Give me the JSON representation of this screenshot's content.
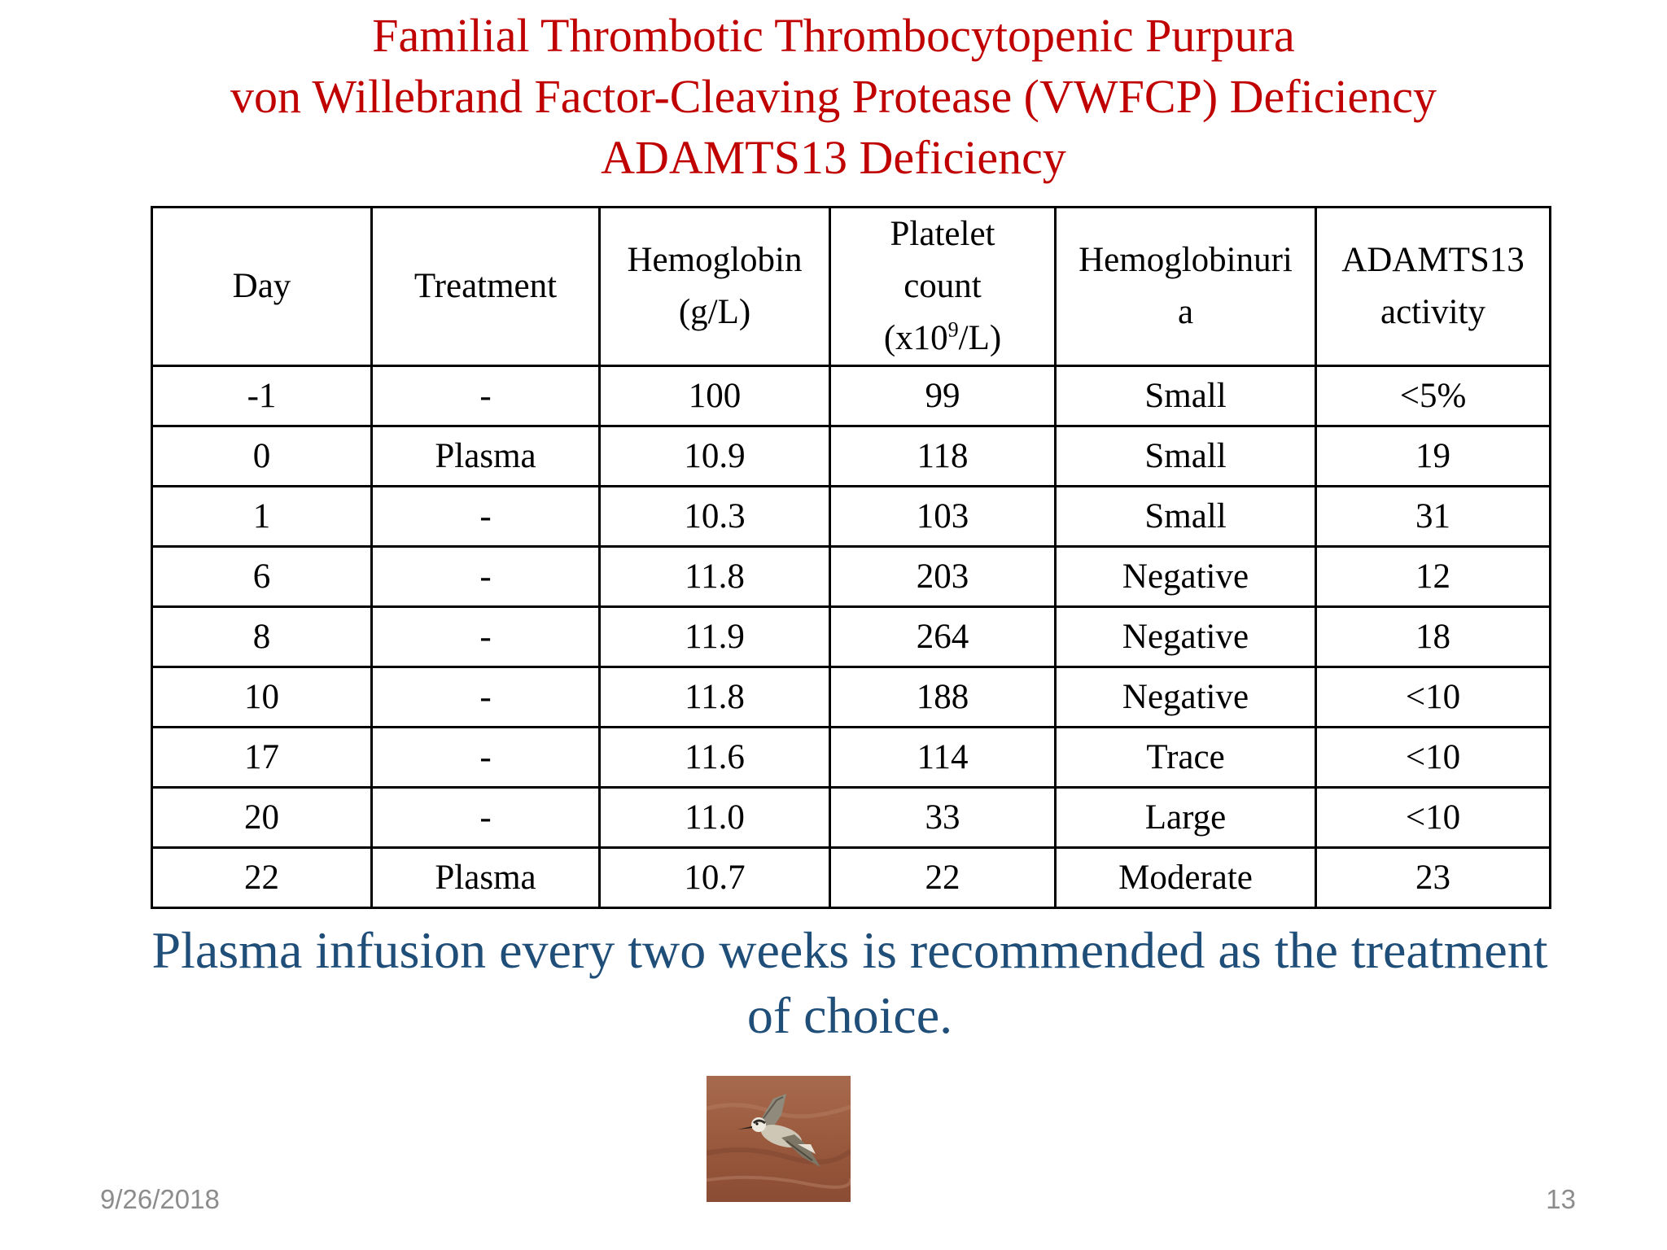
{
  "title": {
    "line1": "Familial Thrombotic Thrombocytopenic Purpura",
    "line2": "von Willebrand Factor-Cleaving Protease (VWFCP) Deficiency",
    "line3": "ADAMTS13 Deficiency",
    "color": "#c00000"
  },
  "table": {
    "headers": {
      "day": "Day",
      "treatment": "Treatment",
      "hemoglobin_line1": "Hemoglobin",
      "hemoglobin_line2": "(g/L)",
      "platelet_line1": "Platelet",
      "platelet_line2": "count",
      "platelet_line3_prefix": "(x10",
      "platelet_line3_sup": "9",
      "platelet_line3_suffix": "/L)",
      "hemoglobinuria_line1": "Hemoglobinuri",
      "hemoglobinuria_line2": "a",
      "adamts13_line1": "ADAMTS13",
      "adamts13_line2": "activity"
    },
    "rows": [
      {
        "day": "-1",
        "treatment": "-",
        "hemoglobin": "100",
        "platelet": "99",
        "hemoglobinuria": "Small",
        "adamts13": "<5%"
      },
      {
        "day": "0",
        "treatment": "Plasma",
        "hemoglobin": "10.9",
        "platelet": "118",
        "hemoglobinuria": "Small",
        "adamts13": "19"
      },
      {
        "day": "1",
        "treatment": "-",
        "hemoglobin": "10.3",
        "platelet": "103",
        "hemoglobinuria": "Small",
        "adamts13": "31"
      },
      {
        "day": "6",
        "treatment": "-",
        "hemoglobin": "11.8",
        "platelet": "203",
        "hemoglobinuria": "Negative",
        "adamts13": "12"
      },
      {
        "day": "8",
        "treatment": "-",
        "hemoglobin": "11.9",
        "platelet": "264",
        "hemoglobinuria": "Negative",
        "adamts13": "18"
      },
      {
        "day": "10",
        "treatment": "-",
        "hemoglobin": "11.8",
        "platelet": "188",
        "hemoglobinuria": "Negative",
        "adamts13": "<10"
      },
      {
        "day": "17",
        "treatment": "-",
        "hemoglobin": "11.6",
        "platelet": "114",
        "hemoglobinuria": "Trace",
        "adamts13": "<10"
      },
      {
        "day": "20",
        "treatment": "-",
        "hemoglobin": "11.0",
        "platelet": "33",
        "hemoglobinuria": "Large",
        "adamts13": "<10"
      },
      {
        "day": "22",
        "treatment": "Plasma",
        "hemoglobin": "10.7",
        "platelet": "22",
        "hemoglobinuria": "Moderate",
        "adamts13": "23"
      }
    ]
  },
  "conclusion": {
    "line1": "Plasma infusion every two weeks is recommended as the treatment",
    "line2": "of choice.",
    "color": "#1f4e79"
  },
  "footer": {
    "date": "9/26/2018",
    "page_number": "13"
  }
}
